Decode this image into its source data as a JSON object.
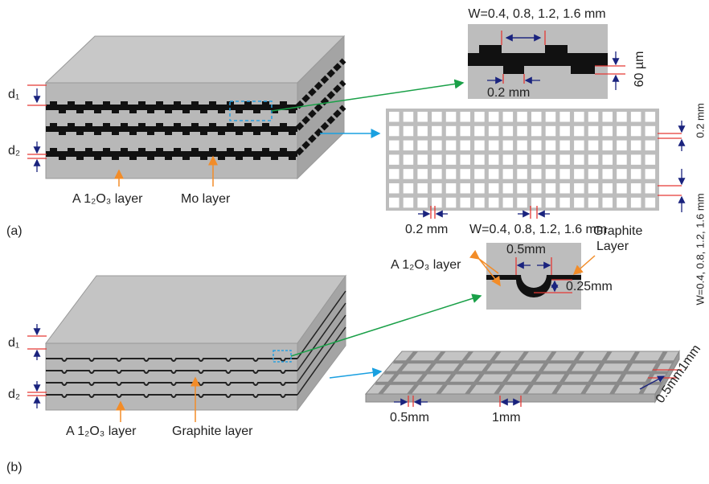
{
  "panel_a": {
    "label": "(a)",
    "d1": "d₁",
    "d2": "d₂",
    "alumina_label": "A 1₂O₃ layer",
    "metal_label": "Mo layer",
    "inset": {
      "width": "W=0.4, 0.8, 1.2, 1.6 mm",
      "thickness": "60 µm",
      "gap": "0.2 mm"
    },
    "grid": {
      "row_gap": "0.2 mm",
      "row_width": "W=0.4, 0.8, 1.2, 1.6 mm",
      "col_gap": "0.2 mm",
      "col_width": "W=0.4, 0.8, 1.2, 1.6 mm"
    }
  },
  "panel_b": {
    "label": "(b)",
    "d1": "d₁",
    "d2": "d₂",
    "alumina_label": "A 1₂O₃ layer",
    "graphite_label": "Graphite layer",
    "inset": {
      "width": "0.5mm",
      "graphite_line1": "Graphite",
      "graphite_line2": "Layer",
      "alumina_label": "A 1₂O₃ layer",
      "depth": "0.25mm"
    },
    "mesh": {
      "gap": "0.5mm",
      "width": "1mm",
      "side_gap": "0.5mm",
      "side_width": "1mm"
    }
  }
}
